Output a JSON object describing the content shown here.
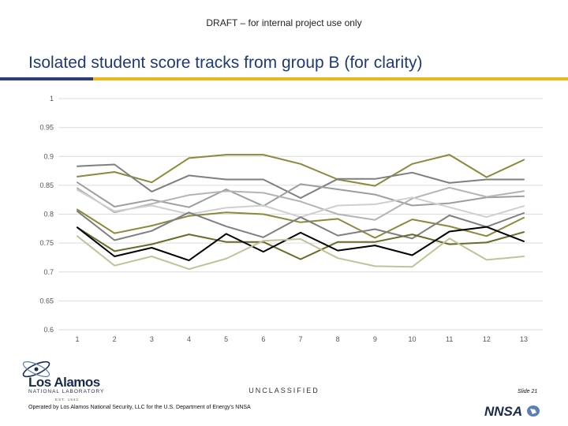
{
  "header": {
    "draft_notice": "DRAFT – for internal project use only",
    "title": "Isolated student score tracks from group B (for clarity)"
  },
  "footer": {
    "classification": "UNCLASSIFIED",
    "slide_label": "Slide 21",
    "operated_by": "Operated by Los Alamos National Security, LLC for the U.S. Department of Energy's NNSA",
    "logo_name": "Los Alamos",
    "logo_subtitle": "NATIONAL LABORATORY",
    "logo_est": "EST. 1943",
    "nnsa_text": "NNSA"
  },
  "colors": {
    "title": "#1f3a7a",
    "rule_gold": "#e8b81a",
    "rule_navy": "#2a3f7a"
  },
  "chart_data": {
    "type": "line",
    "title": "",
    "xlabel": "",
    "ylabel": "",
    "x": [
      1,
      2,
      3,
      4,
      5,
      6,
      7,
      8,
      9,
      10,
      11,
      12,
      13
    ],
    "ylim": [
      0.6,
      1.0
    ],
    "yticks": [
      "0.6",
      "0.65",
      "0.7",
      "0.75",
      "0.8",
      "0.85",
      "0.9",
      "0.95",
      "1"
    ],
    "xticks": [
      "1",
      "2",
      "3",
      "4",
      "5",
      "6",
      "7",
      "8",
      "9",
      "10",
      "11",
      "12",
      "13"
    ],
    "grid": true,
    "legend": "none",
    "series": [
      {
        "color": "#8a8a3a",
        "values": [
          0.865,
          0.873,
          0.855,
          0.897,
          0.903,
          0.903,
          0.887,
          0.86,
          0.849,
          0.887,
          0.903,
          0.864,
          0.894
        ]
      },
      {
        "color": "#7f7f7f",
        "values": [
          0.883,
          0.886,
          0.839,
          0.867,
          0.86,
          0.86,
          0.828,
          0.861,
          0.861,
          0.872,
          0.854,
          0.86,
          0.86
        ]
      },
      {
        "color": "#9e9e9e",
        "values": [
          0.855,
          0.813,
          0.825,
          0.812,
          0.843,
          0.814,
          0.852,
          0.843,
          0.834,
          0.815,
          0.819,
          0.829,
          0.831
        ]
      },
      {
        "color": "#b4b4b4",
        "values": [
          0.845,
          0.803,
          0.818,
          0.833,
          0.84,
          0.837,
          0.822,
          0.8,
          0.79,
          0.827,
          0.846,
          0.83,
          0.84
        ]
      },
      {
        "color": "#cfcfcf",
        "values": [
          0.842,
          0.805,
          0.815,
          0.8,
          0.811,
          0.815,
          0.795,
          0.815,
          0.817,
          0.829,
          0.812,
          0.795,
          0.814
        ]
      },
      {
        "color": "#8a8a3a",
        "values": [
          0.808,
          0.767,
          0.78,
          0.797,
          0.803,
          0.8,
          0.786,
          0.792,
          0.759,
          0.791,
          0.779,
          0.762,
          0.794
        ]
      },
      {
        "color": "#7f7f7f",
        "values": [
          0.805,
          0.755,
          0.771,
          0.803,
          0.779,
          0.76,
          0.795,
          0.763,
          0.774,
          0.758,
          0.798,
          0.778,
          0.802
        ]
      },
      {
        "color": "#6b6b28",
        "values": [
          0.777,
          0.736,
          0.748,
          0.765,
          0.752,
          0.752,
          0.722,
          0.752,
          0.752,
          0.765,
          0.748,
          0.751,
          0.769
        ]
      },
      {
        "color": "#000000",
        "values": [
          0.777,
          0.727,
          0.742,
          0.72,
          0.766,
          0.735,
          0.768,
          0.737,
          0.746,
          0.729,
          0.77,
          0.778,
          0.753
        ]
      },
      {
        "color": "#c2c29a",
        "values": [
          0.762,
          0.711,
          0.727,
          0.705,
          0.723,
          0.754,
          0.757,
          0.724,
          0.71,
          0.709,
          0.758,
          0.721,
          0.727
        ]
      }
    ]
  }
}
